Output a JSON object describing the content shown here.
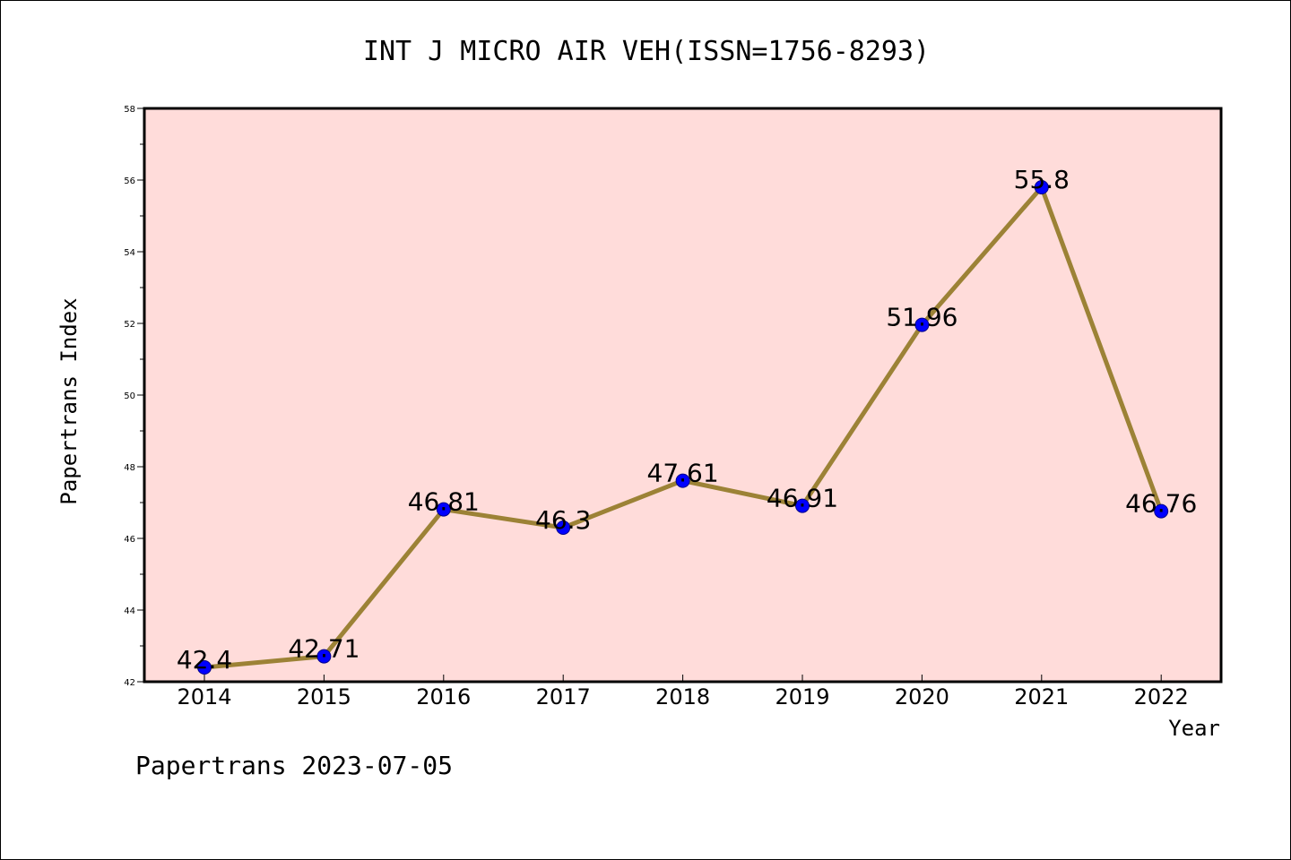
{
  "chart_data": {
    "type": "line",
    "title": "INT J MICRO AIR VEH(ISSN=1756-8293)",
    "xlabel": "Year",
    "ylabel": "Papertrans Index",
    "categories": [
      "2014",
      "2015",
      "2016",
      "2017",
      "2018",
      "2019",
      "2020",
      "2021",
      "2022"
    ],
    "values": [
      42.4,
      42.71,
      46.81,
      46.3,
      47.61,
      46.91,
      51.96,
      55.8,
      46.76
    ],
    "data_labels": [
      "42.4",
      "42.71",
      "46.81",
      "46.3",
      "47.61",
      "46.91",
      "51.96",
      "55.8",
      "46.76"
    ],
    "ylim": [
      42,
      58
    ],
    "yticks": [
      42,
      44,
      46,
      48,
      50,
      52,
      54,
      56,
      58
    ],
    "grid": false,
    "colors": {
      "plot_background": "#FFDCDA",
      "line": "#9C8236",
      "marker": "#0000FF"
    }
  },
  "footer": "Papertrans 2023-07-05"
}
